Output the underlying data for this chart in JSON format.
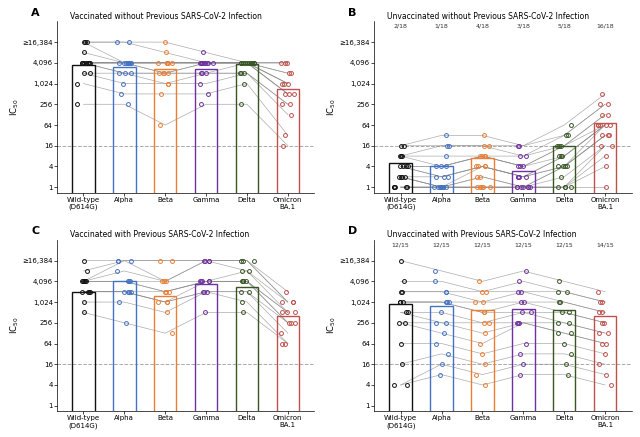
{
  "panel_titles": [
    "Vaccinated without Previous SARS-CoV-2 Infection",
    "Unvaccinated without Previous SARS-CoV-2 Infection",
    "Vaccinated with Previous SARS-CoV-2 Infection",
    "Unvaccinated with Previous SARS-CoV-2 Infection"
  ],
  "panel_labels": [
    "A",
    "B",
    "C",
    "D"
  ],
  "x_labels": [
    "Wild-type\n(D614G)",
    "Alpha",
    "Beta",
    "Gamma",
    "Delta",
    "Omicron\nBA.1"
  ],
  "bar_colors": [
    "#111111",
    "#4472C4",
    "#ED7D31",
    "#7030A0",
    "#375623",
    "#C0504D"
  ],
  "yticks": [
    1,
    4,
    16,
    64,
    256,
    1024,
    4096,
    16384
  ],
  "ytick_labels": [
    "1",
    "4",
    "16",
    "64",
    "256",
    "1,024",
    "4,096",
    "≥16,384"
  ],
  "hline_y": 16,
  "top_annotations_B": [
    "2/18",
    "1/18",
    "4/18",
    "3/18",
    "5/18",
    "16/18"
  ],
  "top_annotations_D": [
    "12/15",
    "12/15",
    "12/15",
    "12/15",
    "12/15",
    "14/15"
  ],
  "panel_A_medians": [
    3500,
    3200,
    2800,
    2800,
    3800,
    700
  ],
  "panel_B_medians": [
    5,
    4,
    7,
    3,
    16,
    75
  ],
  "panel_C_medians": [
    2000,
    4096,
    1500,
    3500,
    2800,
    400
  ],
  "panel_D_medians": [
    900,
    800,
    600,
    650,
    600,
    400
  ],
  "panel_A_samples": [
    [
      16384,
      16384,
      16384,
      8192,
      4096,
      4096
    ],
    [
      16384,
      16384,
      8192,
      4096,
      4096,
      4096
    ],
    [
      16384,
      4096,
      4096,
      4096,
      4096,
      4096
    ],
    [
      8192,
      4096,
      4096,
      4096,
      4096,
      2048
    ],
    [
      4096,
      4096,
      4096,
      4096,
      4096,
      2048
    ],
    [
      4096,
      4096,
      4096,
      4096,
      4096,
      1024
    ],
    [
      4096,
      4096,
      4096,
      4096,
      4096,
      1024
    ],
    [
      4096,
      4096,
      4096,
      4096,
      4096,
      1024
    ],
    [
      4096,
      4096,
      2048,
      4096,
      4096,
      512
    ],
    [
      4096,
      4096,
      2048,
      4096,
      4096,
      512
    ],
    [
      4096,
      2048,
      2048,
      2048,
      4096,
      512
    ],
    [
      4096,
      2048,
      2048,
      2048,
      2048,
      256
    ],
    [
      2048,
      2048,
      1024,
      2048,
      2048,
      256
    ],
    [
      2048,
      1024,
      1024,
      1024,
      2048,
      128
    ],
    [
      1024,
      512,
      512,
      512,
      1024,
      32
    ],
    [
      256,
      256,
      64,
      256,
      256,
      16
    ]
  ],
  "panel_B_samples": [
    [
      16,
      32,
      32,
      16,
      64,
      512
    ],
    [
      16,
      16,
      16,
      16,
      32,
      256
    ],
    [
      8,
      16,
      16,
      8,
      32,
      256
    ],
    [
      8,
      8,
      8,
      8,
      16,
      128
    ],
    [
      8,
      4,
      8,
      4,
      16,
      128
    ],
    [
      4,
      4,
      8,
      4,
      16,
      64
    ],
    [
      4,
      4,
      8,
      4,
      8,
      64
    ],
    [
      4,
      2,
      4,
      2,
      8,
      64
    ],
    [
      4,
      2,
      4,
      2,
      8,
      64
    ],
    [
      2,
      2,
      4,
      2,
      4,
      64
    ],
    [
      2,
      1,
      4,
      2,
      4,
      32
    ],
    [
      2,
      1,
      2,
      1,
      4,
      32
    ],
    [
      2,
      1,
      2,
      1,
      4,
      32
    ],
    [
      1,
      1,
      1,
      1,
      2,
      16
    ],
    [
      1,
      1,
      1,
      1,
      1,
      16
    ],
    [
      1,
      1,
      1,
      1,
      1,
      8
    ],
    [
      1,
      1,
      1,
      1,
      1,
      4
    ],
    [
      1,
      1,
      1,
      1,
      1,
      1
    ]
  ],
  "panel_C_samples": [
    [
      16384,
      16384,
      16384,
      16384,
      16384,
      2048
    ],
    [
      8192,
      16384,
      16384,
      16384,
      16384,
      1024
    ],
    [
      4096,
      16384,
      4096,
      16384,
      16384,
      1024
    ],
    [
      4096,
      8192,
      4096,
      16384,
      8192,
      1024
    ],
    [
      4096,
      4096,
      4096,
      4096,
      8192,
      512
    ],
    [
      4096,
      4096,
      2048,
      4096,
      4096,
      512
    ],
    [
      4096,
      4096,
      2048,
      4096,
      4096,
      512
    ],
    [
      2048,
      2048,
      2048,
      4096,
      4096,
      256
    ],
    [
      2048,
      2048,
      1024,
      4096,
      4096,
      256
    ],
    [
      2048,
      2048,
      1024,
      2048,
      2048,
      256
    ],
    [
      2048,
      2048,
      1024,
      2048,
      2048,
      128
    ],
    [
      1024,
      1024,
      512,
      2048,
      1024,
      64
    ],
    [
      512,
      256,
      128,
      512,
      512,
      64
    ]
  ],
  "panel_D_samples": [
    [
      16384,
      8192,
      4096,
      8192,
      4096,
      2048
    ],
    [
      4096,
      4096,
      2048,
      4096,
      2048,
      1024
    ],
    [
      2048,
      2048,
      2048,
      2048,
      2048,
      1024
    ],
    [
      2048,
      2048,
      1024,
      2048,
      1024,
      512
    ],
    [
      1024,
      1024,
      1024,
      1024,
      1024,
      512
    ],
    [
      1024,
      1024,
      512,
      1024,
      512,
      256
    ],
    [
      1024,
      1024,
      512,
      512,
      512,
      256
    ],
    [
      512,
      512,
      256,
      512,
      256,
      128
    ],
    [
      512,
      256,
      256,
      256,
      256,
      128
    ],
    [
      256,
      256,
      128,
      256,
      128,
      64
    ],
    [
      256,
      128,
      64,
      256,
      128,
      64
    ],
    [
      64,
      64,
      32,
      64,
      64,
      32
    ],
    [
      16,
      32,
      16,
      32,
      32,
      16
    ],
    [
      4,
      16,
      8,
      16,
      16,
      8
    ],
    [
      4,
      8,
      4,
      8,
      8,
      4
    ]
  ]
}
